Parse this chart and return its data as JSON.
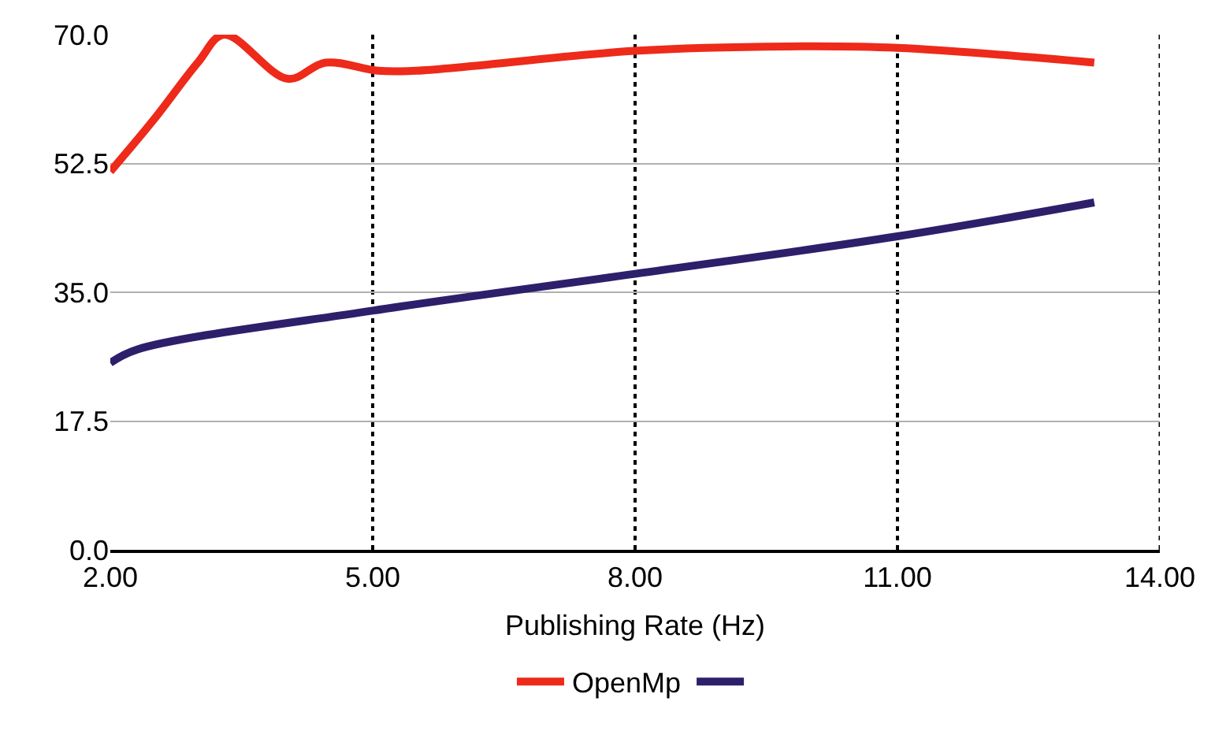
{
  "chart_data": {
    "type": "line",
    "xlabel": "Publishing Rate (Hz)",
    "xlim": [
      2,
      14
    ],
    "xticks": [
      {
        "value": 2,
        "label": "2.00"
      },
      {
        "value": 5,
        "label": "5.00"
      },
      {
        "value": 8,
        "label": "8.00"
      },
      {
        "value": 11,
        "label": "11.00"
      },
      {
        "value": 14,
        "label": "14.00"
      }
    ],
    "ylim": [
      0,
      70
    ],
    "yticks": [
      {
        "value": 0,
        "label": "0.0"
      },
      {
        "value": 17.5,
        "label": "17.5"
      },
      {
        "value": 35,
        "label": "35.0"
      },
      {
        "value": 52.5,
        "label": "52.5"
      },
      {
        "value": 70,
        "label": "70.0"
      }
    ],
    "grid": true,
    "legend": "bottom",
    "marker": "none",
    "line_style": "solid",
    "series": [
      {
        "name": "OpenMp",
        "color": "#ee2a1a",
        "x": [
          2,
          2.5,
          3,
          3.3,
          4.03,
          4.46,
          5.06,
          5.5,
          8,
          9.75,
          11,
          13.25
        ],
        "values": [
          51.4,
          58.5,
          66.2,
          70,
          64,
          66.2,
          65.1,
          65.1,
          67.8,
          68.4,
          68.2,
          66.2
        ]
      },
      {
        "color": "#2e1f6b",
        "x": [
          2,
          2.3,
          5,
          8,
          11,
          13.25
        ],
        "values": [
          25.4,
          27.2,
          32.5,
          37.5,
          42.6,
          47.2
        ]
      }
    ]
  }
}
